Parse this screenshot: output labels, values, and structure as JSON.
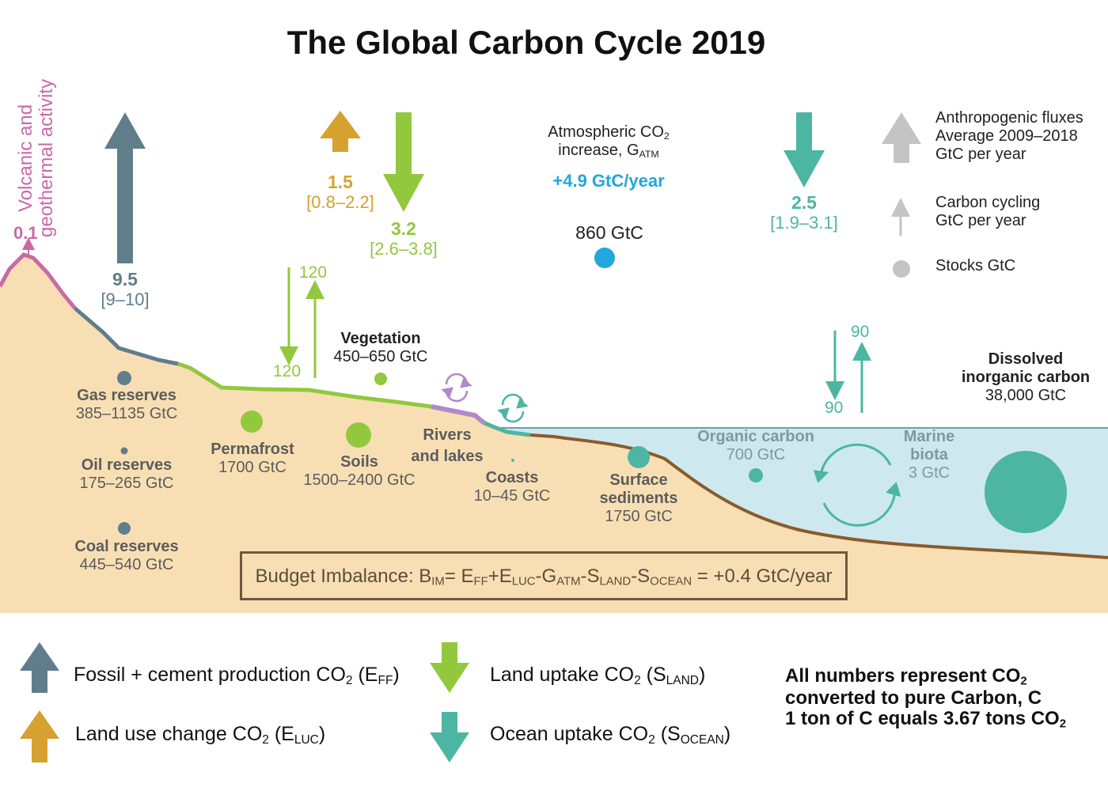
{
  "title": "The Global Carbon Cycle 2019",
  "colors": {
    "fossil": "#607d8c",
    "luc": "#d6a12f",
    "land_uptake": "#92c83e",
    "ocean_uptake": "#4cb6a2",
    "anthropogenic_legend": "#c4c4c4",
    "atmosphere_stock": "#22a6dd",
    "land": "#f8dfb3",
    "ocean": "#cde9ef",
    "volcanic": "#c86aa7",
    "sediment_line": "#8b5a2b"
  },
  "volcanic": {
    "label_line1": "Volcanic and",
    "label_line2": "geothermal activity",
    "value": "0.1"
  },
  "fossil_flux": {
    "value": "9.5",
    "range": "[9–10]"
  },
  "luc_flux": {
    "value": "1.5",
    "range": "[0.8–2.2]"
  },
  "land_uptake_flux": {
    "value": "3.2",
    "range": "[2.6–3.8]"
  },
  "ocean_uptake_flux": {
    "value": "2.5",
    "range": "[1.9–3.1]"
  },
  "atmosphere": {
    "line1": "Atmospheric CO",
    "line1_sub": "2",
    "line2": "increase, G",
    "line2_sub": "ATM",
    "rate": "+4.9 GtC/year",
    "stock": "860 GtC"
  },
  "legend_top": {
    "anthropogenic": [
      "Anthropogenic fluxes",
      "Average 2009–2018",
      "GtC per year"
    ],
    "cycling": [
      "Carbon cycling",
      "GtC per year"
    ],
    "stocks": "Stocks GtC"
  },
  "land_cycling": {
    "down": "120",
    "up": "120"
  },
  "ocean_cycling": {
    "down": "90",
    "up": "90"
  },
  "stocks": {
    "gas": {
      "name": "Gas reserves",
      "value": "385–1135 GtC"
    },
    "oil": {
      "name": "Oil reserves",
      "value": "175–265 GtC"
    },
    "coal": {
      "name": "Coal reserves",
      "value": "445–540 GtC"
    },
    "vegetation": {
      "name": "Vegetation",
      "value": "450–650 GtC"
    },
    "permafrost": {
      "name": "Permafrost",
      "value": "1700 GtC"
    },
    "soils": {
      "name": "Soils",
      "value": "1500–2400 GtC"
    },
    "rivers": {
      "line1": "Rivers",
      "line2": "and lakes"
    },
    "coasts": {
      "name": "Coasts",
      "value": "10–45 GtC"
    },
    "surface_sediments": {
      "line1": "Surface",
      "line2": "sediments",
      "value": "1750 GtC"
    },
    "organic_carbon": {
      "name": "Organic carbon",
      "value": "700 GtC"
    },
    "marine_biota": {
      "line1": "Marine",
      "line2": "biota",
      "value": "3 GtC"
    },
    "dissolved": {
      "line1": "Dissolved",
      "line2": "inorganic carbon",
      "value": "38,000 GtC"
    }
  },
  "budget": {
    "prefix": "Budget Imbalance: B",
    "sub_im": "IM",
    "eq1": "= E",
    "sub_ff": "FF",
    "plus_e": "+E",
    "sub_luc": "LUC",
    "minus_g": "-G",
    "sub_atm": "ATM",
    "minus_s1": "-S",
    "sub_land": "LAND",
    "minus_s2": "-S",
    "sub_ocean": "OCEAN",
    "result": " = +0.4 GtC/year"
  },
  "legend_bottom": {
    "fossil": {
      "text": "Fossil + cement production CO",
      "sub2": "2",
      "paren": " (E",
      "sub": "FF",
      "close": ")"
    },
    "luc": {
      "text": "Land use change CO",
      "sub2": "2",
      "paren": " (E",
      "sub": "LUC",
      "close": ")"
    },
    "land": {
      "text": "Land uptake CO",
      "sub2": "2",
      "paren": " (S",
      "sub": "LAND",
      "close": ")"
    },
    "ocean": {
      "text": "Ocean uptake CO",
      "sub2": "2",
      "paren": " (S",
      "sub": "OCEAN",
      "close": ")"
    },
    "note_line1": "All numbers represent CO",
    "note_line1_sub": "2",
    "note_line2": "converted to pure Carbon, C",
    "note_line3": "1 ton of C equals 3.67 tons CO",
    "note_line3_sub": "2"
  }
}
